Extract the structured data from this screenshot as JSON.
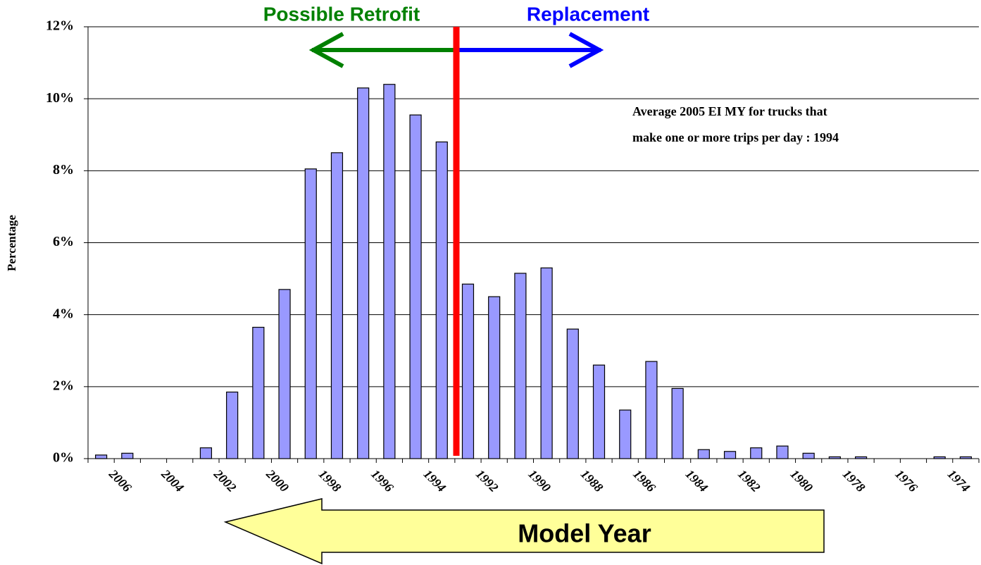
{
  "chart_data": {
    "type": "bar",
    "categories": [
      null,
      "2006",
      null,
      "2004",
      null,
      "2002",
      null,
      "2000",
      null,
      "1998",
      null,
      "1996",
      null,
      "1994",
      null,
      "1992",
      null,
      "1990",
      null,
      "1988",
      null,
      "1986",
      null,
      "1984",
      null,
      "1982",
      null,
      "1980",
      null,
      "1978",
      null,
      "1976",
      null,
      "1974"
    ],
    "values": [
      0.1,
      0.15,
      0,
      0,
      0.3,
      1.85,
      3.65,
      4.7,
      8.05,
      8.5,
      10.3,
      10.4,
      9.55,
      8.8,
      4.85,
      4.5,
      5.15,
      5.3,
      3.6,
      2.6,
      1.35,
      2.7,
      1.95,
      0.25,
      0.2,
      0.3,
      0.35,
      0.15,
      0.05,
      0.05,
      0,
      0,
      0.05,
      0.05
    ],
    "color": "#9999ff",
    "ylim": [
      0,
      12
    ],
    "yticks": [
      {
        "value": 0,
        "label": "0%"
      },
      {
        "value": 2,
        "label": "2%"
      },
      {
        "value": 4,
        "label": "4%"
      },
      {
        "value": 6,
        "label": "6%"
      },
      {
        "value": 8,
        "label": "8%"
      },
      {
        "value": 10,
        "label": "10%"
      },
      {
        "value": 12,
        "label": "12%"
      }
    ],
    "grid": true,
    "y_label": "Percentage",
    "x_label": "Model Year",
    "annotations": {
      "left_arrow": "Possible Retrofit",
      "right_arrow": "Replacement",
      "note": [
        "Average 2005 EI MY for trucks that",
        "make one or more trips per day : 1994"
      ]
    }
  }
}
